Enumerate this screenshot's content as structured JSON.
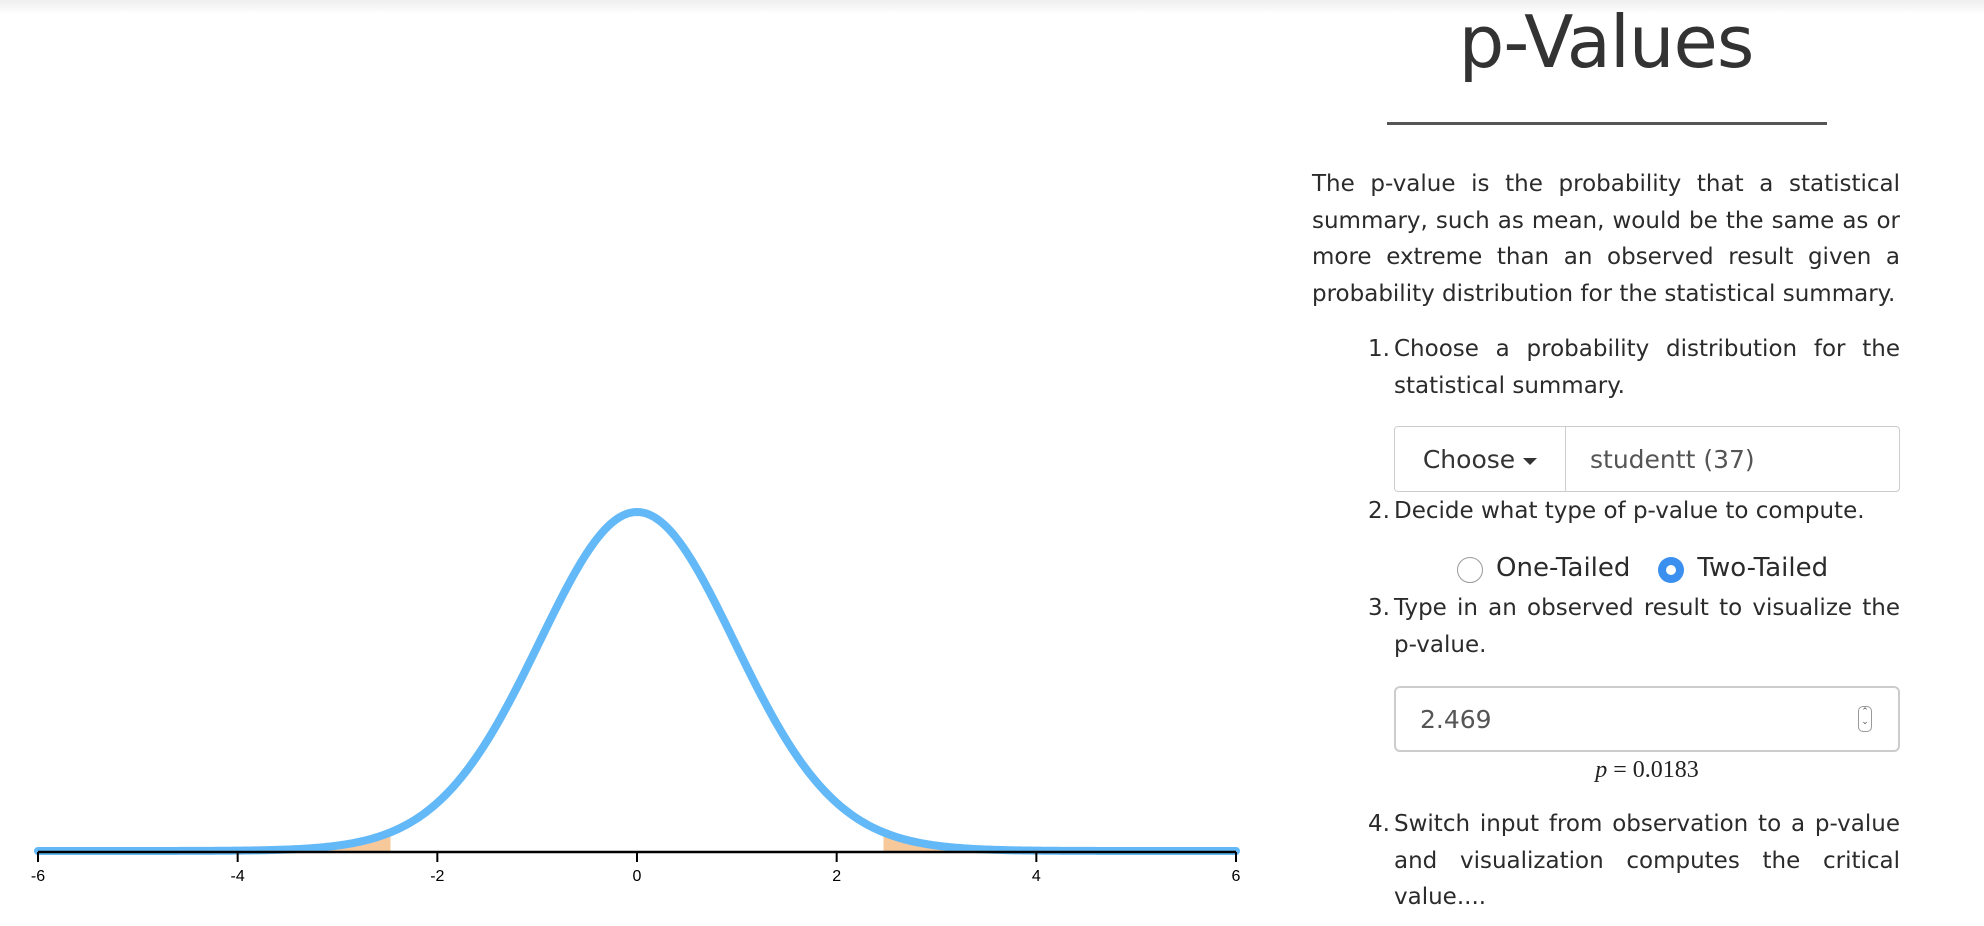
{
  "colors": {
    "curve": "#63b8f7",
    "tail_fill": "#f7c99a",
    "axis": "#000000",
    "radio_checked": "#3b8fef"
  },
  "title": "p-Values",
  "intro": "The p-value is the probability that a statistical summary, such as mean, would be the same as or more extreme than an observed result given a probability distribution for the statistical summary.",
  "steps": [
    {
      "num": "1.",
      "text": "Choose a probability distribution for the statistical summary."
    },
    {
      "num": "2.",
      "text": "Decide what type of p-value to compute."
    },
    {
      "num": "3.",
      "text": "Type in an observed result to visualize the p-value."
    },
    {
      "num": "4.",
      "text": "Switch input from observation to a p-value and visualization computes the critical value...."
    }
  ],
  "distribution": {
    "choose_label": "Choose",
    "value": "studentt (37)"
  },
  "tails": {
    "options": [
      {
        "label": "One-Tailed",
        "checked": false
      },
      {
        "label": "Two-Tailed",
        "checked": true
      }
    ]
  },
  "observation": {
    "value": "2.469",
    "spinner_icon": "number-spinner-icon"
  },
  "result": {
    "p_symbol": "p",
    "equals": "=",
    "p_value": "0.0183"
  },
  "chart_data": {
    "type": "area",
    "distribution": "studentt",
    "degrees_of_freedom": 37,
    "observed": 2.469,
    "tails": "two",
    "shaded_regions": [
      [
        -6,
        -2.469
      ],
      [
        2.469,
        6
      ]
    ],
    "xlim": [
      -6,
      6
    ],
    "ticks": [
      -6,
      -4,
      -2,
      0,
      2,
      4,
      6
    ],
    "tick_labels": [
      "-6",
      "-4",
      "-2",
      "0",
      "2",
      "4",
      "6"
    ],
    "grid": false
  }
}
